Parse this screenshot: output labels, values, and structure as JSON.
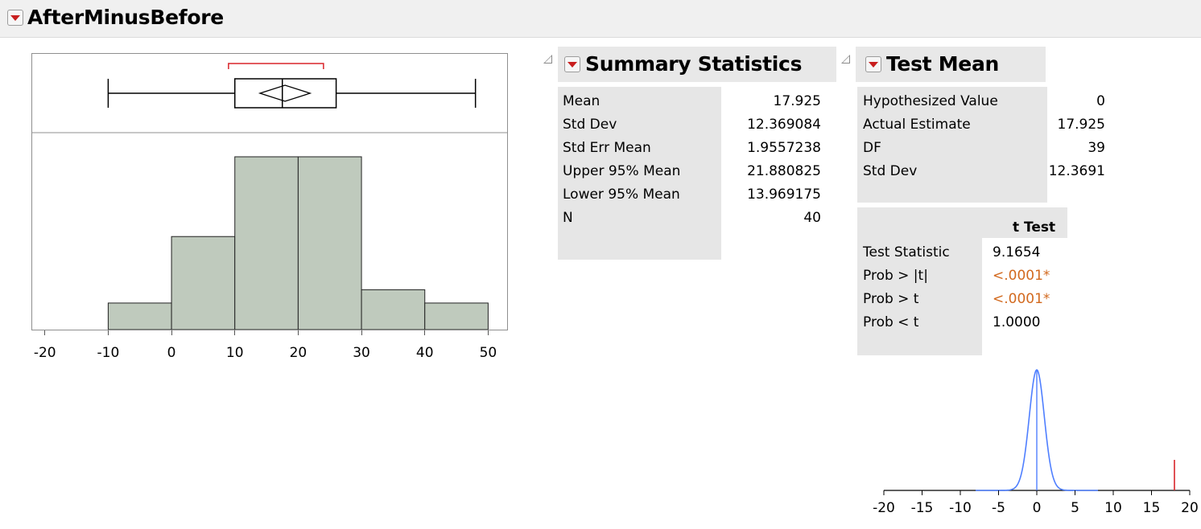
{
  "report": {
    "title": "AfterMinusBefore"
  },
  "summary": {
    "title": "Summary Statistics",
    "rows": [
      {
        "label": "Mean",
        "value": "17.925"
      },
      {
        "label": "Std Dev",
        "value": "12.369084"
      },
      {
        "label": "Std Err Mean",
        "value": "1.9557238"
      },
      {
        "label": "Upper 95% Mean",
        "value": "21.880825"
      },
      {
        "label": "Lower 95% Mean",
        "value": "13.969175"
      },
      {
        "label": "N",
        "value": "40"
      }
    ]
  },
  "test_mean": {
    "title": "Test Mean",
    "rows": [
      {
        "label": "Hypothesized Value",
        "value": "0"
      },
      {
        "label": "Actual Estimate",
        "value": "17.925"
      },
      {
        "label": "DF",
        "value": "39"
      },
      {
        "label": "Std Dev",
        "value": "12.3691"
      }
    ],
    "ttest_header": "t Test",
    "ttest_rows": [
      {
        "label": "Test Statistic",
        "value": "9.1654",
        "highlight": false
      },
      {
        "label": "Prob > |t|",
        "value": "<.0001*",
        "highlight": true
      },
      {
        "label": "Prob > t",
        "value": "<.0001*",
        "highlight": true
      },
      {
        "label": "Prob < t",
        "value": "1.0000",
        "highlight": false
      }
    ]
  },
  "colors": {
    "histogram_fill": "#bfcabd",
    "significance": "#d2691e",
    "density_curve": "#4f7fff",
    "estimate_marker": "#d9252a"
  },
  "chart_data": [
    {
      "type": "bar",
      "title": "",
      "xlabel": "",
      "ylabel": "",
      "bin_edges": [
        -10,
        0,
        10,
        20,
        30,
        40,
        50
      ],
      "counts": [
        2,
        7,
        13,
        13,
        3,
        2
      ],
      "xlim": [
        -22,
        53
      ],
      "x_ticks": [
        "-20",
        "-10",
        "0",
        "10",
        "20",
        "30",
        "40",
        "50"
      ],
      "boxplot": {
        "min": -10,
        "q1": 10,
        "median": 17.5,
        "q3": 26,
        "max": 48,
        "mean": 17.925,
        "ci_lower": 13.969175,
        "ci_upper": 21.880825,
        "shortest_half": [
          9,
          24
        ]
      }
    },
    {
      "type": "line",
      "title": "",
      "xlabel": "",
      "ylabel": "",
      "description_series": "t distribution density, df 39",
      "xlim": [
        -20,
        20
      ],
      "x_ticks": [
        "-20",
        "-15",
        "-10",
        "-5",
        "0",
        "5",
        "10",
        "15",
        "20"
      ],
      "center": 0,
      "df": 39,
      "estimate_marker": 18
    }
  ]
}
